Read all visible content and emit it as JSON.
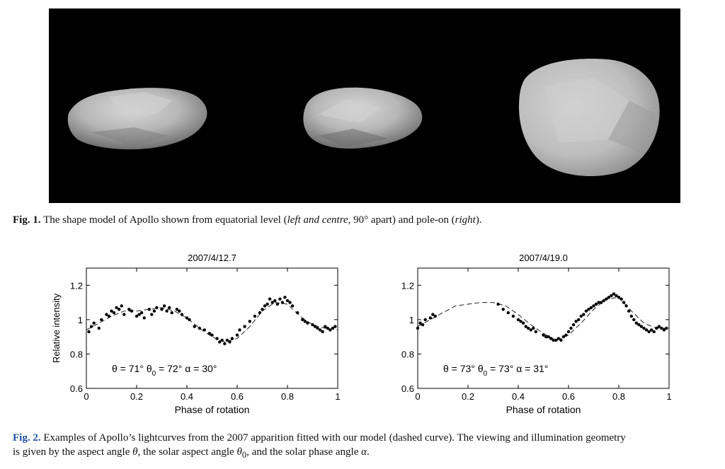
{
  "fig1": {
    "label": "Fig. 1.",
    "caption_start": "The shape model of Apollo shown from equatorial level (",
    "caption_italic_1": "left and centre",
    "caption_middle": ", 90° apart) and pole-on (",
    "caption_italic_2": "right",
    "caption_end": ").",
    "panel_color": "#000000",
    "shape_color": "#c7c7c7"
  },
  "fig2": {
    "label": "Fig. 2.",
    "caption_line1": "Examples of Apollo’s lightcurves from the 2007 apparition fitted with our model (dashed curve). The viewing and illumination geometry",
    "caption_line2_a": "is given by the aspect angle ",
    "caption_theta": "θ",
    "caption_line2_b": ", the solar aspect angle ",
    "caption_theta0": "θ",
    "caption_theta0_sub": "0",
    "caption_line2_c": ", and the solar phase angle ",
    "caption_alpha": "α",
    "caption_line2_d": ".",
    "label_color": "#1f4fa8"
  },
  "chart_data": [
    {
      "type": "scatter",
      "title": "2007/4/12.7",
      "xlabel": "Phase of rotation",
      "ylabel": "Relative intensity",
      "xlim": [
        0,
        1
      ],
      "ylim": [
        0.6,
        1.3
      ],
      "xticks": [
        0,
        0.2,
        0.4,
        0.6,
        0.8,
        1
      ],
      "xtick_labels": [
        "0",
        "0.2",
        "0.4",
        "0.6",
        "0.8",
        "1"
      ],
      "yticks": [
        0.6,
        0.8,
        1,
        1.2
      ],
      "ytick_labels": [
        "0.6",
        "0.8",
        "1",
        "1.2"
      ],
      "annotation": "θ = 71°   θ₀ = 72°   α = 30°",
      "annotation_parts": {
        "a": "θ = 71°",
        "b1": "θ",
        "b_sub": "0",
        "b2": " = 72°",
        "c": "α = 30°"
      },
      "model_curve": {
        "style": "dashed",
        "x": [
          0,
          0.05,
          0.1,
          0.15,
          0.2,
          0.25,
          0.3,
          0.35,
          0.4,
          0.45,
          0.5,
          0.55,
          0.6,
          0.65,
          0.7,
          0.75,
          0.8,
          0.85,
          0.9,
          0.95,
          1
        ],
        "y": [
          0.94,
          0.98,
          1.02,
          1.05,
          1.05,
          1.06,
          1.07,
          1.05,
          1.01,
          0.95,
          0.9,
          0.87,
          0.89,
          0.96,
          1.05,
          1.1,
          1.09,
          1.02,
          0.97,
          0.95,
          0.94
        ]
      },
      "series": [
        {
          "x": [
            0.01,
            0.02,
            0.03,
            0.05,
            0.06,
            0.08,
            0.09,
            0.1,
            0.11,
            0.12,
            0.13,
            0.14,
            0.15,
            0.17,
            0.18,
            0.2,
            0.21,
            0.22,
            0.23,
            0.25,
            0.26,
            0.27,
            0.28,
            0.3,
            0.31,
            0.32,
            0.33,
            0.34,
            0.36,
            0.37,
            0.38,
            0.4,
            0.41,
            0.43,
            0.45,
            0.47,
            0.49,
            0.5,
            0.52,
            0.53,
            0.54,
            0.55,
            0.56,
            0.57,
            0.58,
            0.6,
            0.61,
            0.63,
            0.65,
            0.67,
            0.69,
            0.7,
            0.71,
            0.72,
            0.73,
            0.74,
            0.75,
            0.76,
            0.77,
            0.78,
            0.79,
            0.8,
            0.81,
            0.82,
            0.84,
            0.86,
            0.87,
            0.88,
            0.9,
            0.91,
            0.92,
            0.93,
            0.94,
            0.95,
            0.96,
            0.97,
            0.98,
            0.99
          ],
          "y": [
            0.93,
            0.96,
            0.98,
            0.95,
            1.0,
            1.03,
            1.02,
            1.05,
            1.04,
            1.07,
            1.06,
            1.08,
            1.03,
            1.06,
            1.05,
            1.02,
            1.03,
            1.04,
            1.01,
            1.06,
            1.03,
            1.05,
            1.07,
            1.06,
            1.08,
            1.05,
            1.07,
            1.04,
            1.06,
            1.05,
            1.03,
            1.01,
            1.0,
            0.96,
            0.95,
            0.94,
            0.92,
            0.91,
            0.89,
            0.87,
            0.88,
            0.86,
            0.88,
            0.87,
            0.89,
            0.91,
            0.94,
            0.96,
            0.99,
            1.02,
            1.04,
            1.06,
            1.08,
            1.09,
            1.12,
            1.1,
            1.11,
            1.09,
            1.12,
            1.1,
            1.13,
            1.11,
            1.1,
            1.08,
            1.04,
            1.0,
            0.99,
            0.98,
            0.97,
            0.96,
            0.95,
            0.94,
            0.93,
            0.96,
            0.95,
            0.94,
            0.95,
            0.96
          ]
        }
      ]
    },
    {
      "type": "scatter",
      "title": "2007/4/19.0",
      "xlabel": "Phase of rotation",
      "ylabel": "",
      "xlim": [
        0,
        1
      ],
      "ylim": [
        0.6,
        1.3
      ],
      "xticks": [
        0,
        0.2,
        0.4,
        0.6,
        0.8,
        1
      ],
      "xtick_labels": [
        "0",
        "0.2",
        "0.4",
        "0.6",
        "0.8",
        "1"
      ],
      "yticks": [
        0.6,
        0.8,
        1,
        1.2
      ],
      "ytick_labels": [
        "0.6",
        "0.8",
        "1",
        "1.2"
      ],
      "annotation": "θ = 73°   θ₀ = 73°   α = 31°",
      "annotation_parts": {
        "a": "θ = 73°",
        "b1": "θ",
        "b_sub": "0",
        "b2": " = 73°",
        "c": "α = 31°"
      },
      "model_curve": {
        "style": "dashed",
        "x": [
          0,
          0.05,
          0.1,
          0.15,
          0.2,
          0.25,
          0.3,
          0.35,
          0.4,
          0.45,
          0.5,
          0.55,
          0.6,
          0.65,
          0.7,
          0.75,
          0.8,
          0.85,
          0.9,
          0.95,
          1
        ],
        "y": [
          0.96,
          1.0,
          1.04,
          1.08,
          1.09,
          1.1,
          1.1,
          1.08,
          1.03,
          0.97,
          0.92,
          0.88,
          0.91,
          0.98,
          1.06,
          1.12,
          1.13,
          1.05,
          0.98,
          0.95,
          0.95
        ]
      },
      "series": [
        {
          "x": [
            0.0,
            0.01,
            0.02,
            0.03,
            0.05,
            0.06,
            0.07,
            0.32,
            0.34,
            0.36,
            0.38,
            0.4,
            0.41,
            0.42,
            0.43,
            0.44,
            0.45,
            0.46,
            0.47,
            0.5,
            0.51,
            0.52,
            0.53,
            0.54,
            0.55,
            0.56,
            0.57,
            0.58,
            0.59,
            0.6,
            0.61,
            0.62,
            0.63,
            0.64,
            0.65,
            0.66,
            0.67,
            0.68,
            0.69,
            0.7,
            0.71,
            0.72,
            0.73,
            0.74,
            0.75,
            0.76,
            0.77,
            0.78,
            0.79,
            0.8,
            0.81,
            0.82,
            0.83,
            0.84,
            0.85,
            0.86,
            0.87,
            0.88,
            0.89,
            0.9,
            0.91,
            0.92,
            0.93,
            0.94,
            0.95,
            0.96,
            0.97,
            0.98,
            0.99
          ],
          "y": [
            0.95,
            0.98,
            0.97,
            1.0,
            1.01,
            1.03,
            1.02,
            1.09,
            1.06,
            1.04,
            1.02,
            1.0,
            0.99,
            0.98,
            0.96,
            0.95,
            0.94,
            0.95,
            0.93,
            0.91,
            0.9,
            0.9,
            0.89,
            0.88,
            0.88,
            0.89,
            0.88,
            0.9,
            0.91,
            0.93,
            0.95,
            0.97,
            0.99,
            1.0,
            1.02,
            1.03,
            1.05,
            1.06,
            1.07,
            1.08,
            1.09,
            1.1,
            1.1,
            1.11,
            1.12,
            1.13,
            1.14,
            1.15,
            1.14,
            1.13,
            1.12,
            1.1,
            1.08,
            1.05,
            1.02,
            1.0,
            0.98,
            0.97,
            0.96,
            0.95,
            0.94,
            0.93,
            0.94,
            0.93,
            0.95,
            0.96,
            0.95,
            0.94,
            0.95
          ]
        }
      ]
    }
  ]
}
